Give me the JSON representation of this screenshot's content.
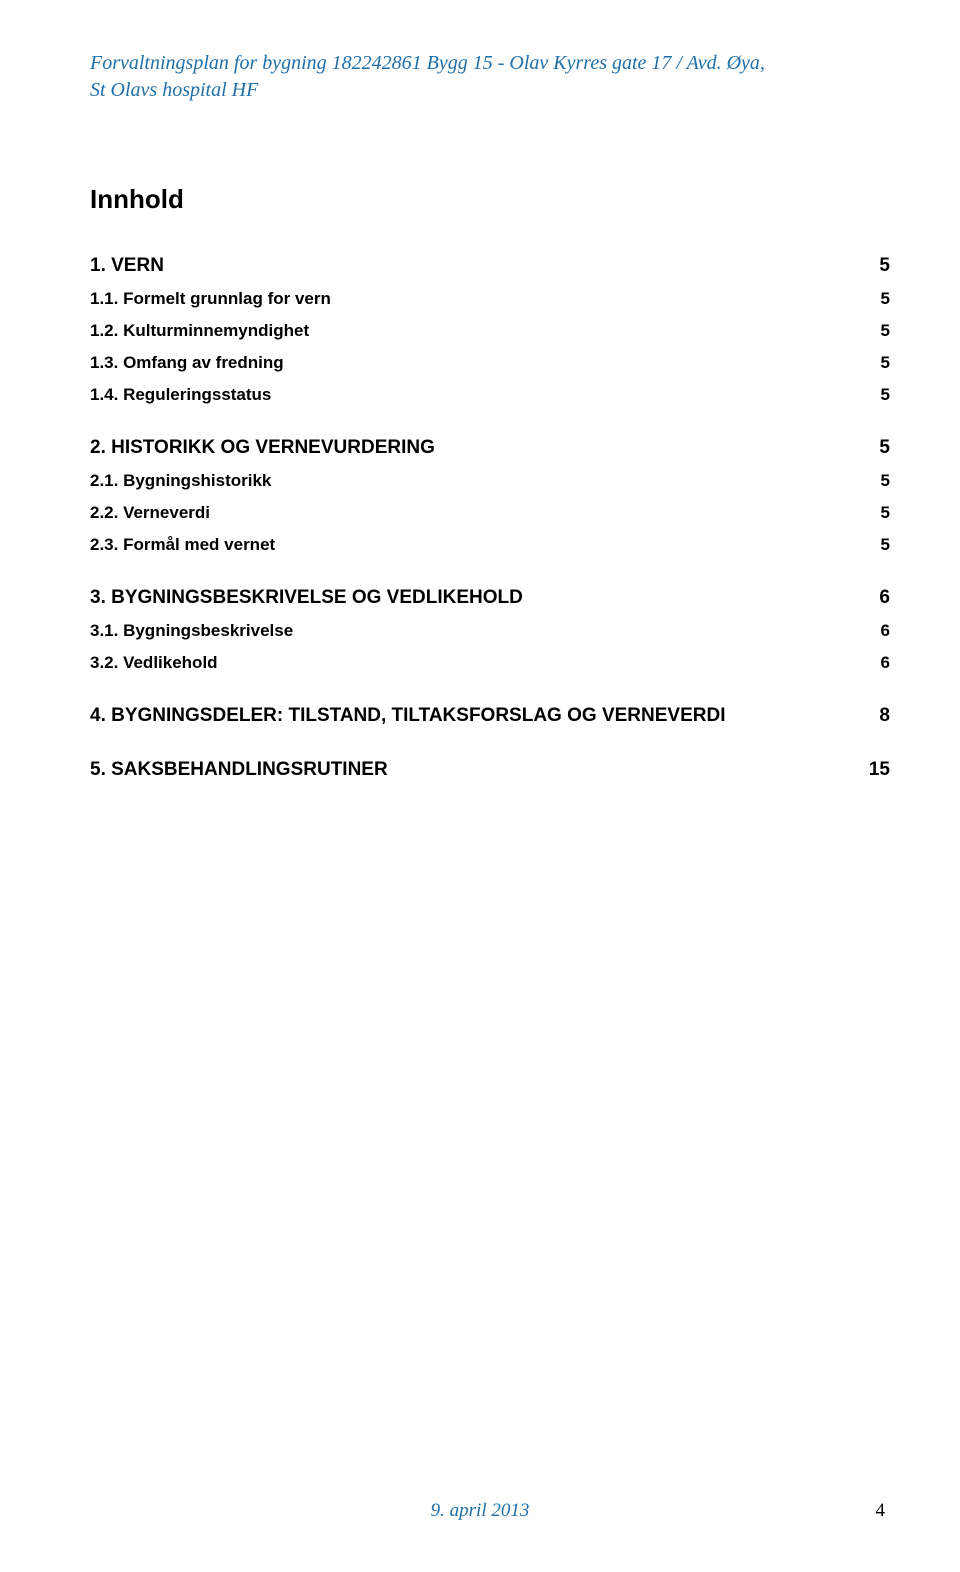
{
  "header": {
    "line1": "Forvaltningsplan for bygning 182242861 Bygg 15 - Olav Kyrres gate 17 / Avd. Øya,",
    "line2": "St Olavs hospital HF"
  },
  "title": "Innhold",
  "toc": [
    {
      "level": 1,
      "label": "1. VERN",
      "page": "5"
    },
    {
      "level": 2,
      "label": "1.1. Formelt grunnlag for vern",
      "page": "5"
    },
    {
      "level": 2,
      "label": "1.2. Kulturminnemyndighet",
      "page": "5"
    },
    {
      "level": 2,
      "label": "1.3. Omfang av fredning",
      "page": "5"
    },
    {
      "level": 2,
      "label": "1.4. Reguleringsstatus",
      "page": "5"
    },
    {
      "level": 1,
      "label": "2. HISTORIKK OG VERNEVURDERING",
      "page": "5"
    },
    {
      "level": 2,
      "label": "2.1. Bygningshistorikk",
      "page": "5"
    },
    {
      "level": 2,
      "label": "2.2. Verneverdi",
      "page": "5"
    },
    {
      "level": 2,
      "label": "2.3. Formål med vernet",
      "page": "5"
    },
    {
      "level": 1,
      "label": "3. BYGNINGSBESKRIVELSE OG VEDLIKEHOLD",
      "page": "6"
    },
    {
      "level": 2,
      "label": "3.1. Bygningsbeskrivelse",
      "page": "6"
    },
    {
      "level": 2,
      "label": "3.2. Vedlikehold",
      "page": "6"
    },
    {
      "level": 1,
      "label": "4. BYGNINGSDELER: TILSTAND, TILTAKSFORSLAG OG VERNEVERDI",
      "page": "8"
    },
    {
      "level": 1,
      "label": "5. SAKSBEHANDLINGSRUTINER",
      "page": "15"
    }
  ],
  "footer": {
    "date": "9. april 2013",
    "pageNumber": "4"
  },
  "colors": {
    "headerText": "#1f6fa8",
    "bodyText": "#000000",
    "background": "#ffffff"
  },
  "fonts": {
    "header": "Times New Roman, serif",
    "body": "Arial, sans-serif"
  }
}
